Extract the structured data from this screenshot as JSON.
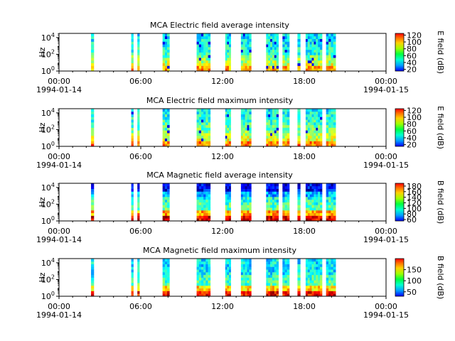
{
  "chart_data": [
    {
      "type": "heatmap",
      "title": "MCA  Electric field average intensity",
      "ylabel": "Hz",
      "y_scale": "log",
      "y_ticks": [
        {
          "base": "10",
          "exp": "0"
        },
        {
          "base": "10",
          "exp": "2"
        },
        {
          "base": "10",
          "exp": "4"
        }
      ],
      "x_ticks": [
        "00:00",
        "06:00",
        "12:00",
        "18:00",
        "00:00"
      ],
      "x_start_date": "1994-01-14",
      "x_end_date": "1994-01-15",
      "colorbar": {
        "label": "E field (dB)",
        "ticks": [
          "20",
          "40",
          "60",
          "80",
          "100",
          "120"
        ],
        "range": [
          15,
          125
        ]
      },
      "data_blocks_hours": [
        [
          2.35,
          2.55
        ],
        [
          5.3,
          5.45
        ],
        [
          5.75,
          5.9
        ],
        [
          7.6,
          8.1
        ],
        [
          10.1,
          11.1
        ],
        [
          12.2,
          12.6
        ],
        [
          13.35,
          14.1
        ],
        [
          15.2,
          16.1
        ],
        [
          16.4,
          16.9
        ],
        [
          17.5,
          17.7
        ],
        [
          18.1,
          19.3
        ],
        [
          19.6,
          20.3
        ]
      ],
      "colors": {
        "low": "#0000ff",
        "mid": "#00ff7f",
        "high": "#ff0000"
      }
    },
    {
      "type": "heatmap",
      "title": "MCA  Electric field maximum intensity",
      "ylabel": "Hz",
      "y_scale": "log",
      "y_ticks": [
        {
          "base": "10",
          "exp": "0"
        },
        {
          "base": "10",
          "exp": "2"
        },
        {
          "base": "10",
          "exp": "4"
        }
      ],
      "x_ticks": [
        "00:00",
        "06:00",
        "12:00",
        "18:00",
        "00:00"
      ],
      "x_start_date": "1994-01-14",
      "x_end_date": "1994-01-15",
      "colorbar": {
        "label": "E field (dB)",
        "ticks": [
          "20",
          "40",
          "60",
          "80",
          "100",
          "120"
        ],
        "range": [
          15,
          125
        ]
      },
      "data_blocks_hours": [
        [
          2.35,
          2.55
        ],
        [
          5.3,
          5.45
        ],
        [
          5.75,
          5.9
        ],
        [
          7.6,
          8.1
        ],
        [
          10.1,
          11.1
        ],
        [
          12.2,
          12.6
        ],
        [
          13.35,
          14.1
        ],
        [
          15.2,
          16.1
        ],
        [
          16.4,
          16.9
        ],
        [
          17.5,
          17.7
        ],
        [
          18.1,
          19.3
        ],
        [
          19.6,
          20.3
        ]
      ],
      "colors": {
        "low": "#0000ff",
        "mid": "#00ff7f",
        "high": "#ff0000"
      }
    },
    {
      "type": "heatmap",
      "title": "MCA  Magnetic field average intensity",
      "ylabel": "Hz",
      "y_scale": "log",
      "y_ticks": [
        {
          "base": "10",
          "exp": "0"
        },
        {
          "base": "10",
          "exp": "2"
        },
        {
          "base": "10",
          "exp": "4"
        }
      ],
      "x_ticks": [
        "00:00",
        "06:00",
        "12:00",
        "18:00",
        "00:00"
      ],
      "x_start_date": "1994-01-14",
      "x_end_date": "1994-01-15",
      "colorbar": {
        "label": "B field (dB)",
        "ticks": [
          "60",
          "80",
          "100",
          "120",
          "140",
          "160",
          "180"
        ],
        "range": [
          55,
          190
        ]
      },
      "data_blocks_hours": [
        [
          2.35,
          2.55
        ],
        [
          5.3,
          5.45
        ],
        [
          5.75,
          5.9
        ],
        [
          7.6,
          8.1
        ],
        [
          10.1,
          11.1
        ],
        [
          12.2,
          12.6
        ],
        [
          13.35,
          14.1
        ],
        [
          15.2,
          16.1
        ],
        [
          16.4,
          16.9
        ],
        [
          17.5,
          17.7
        ],
        [
          18.1,
          19.3
        ],
        [
          19.6,
          20.3
        ]
      ],
      "colors": {
        "low": "#0000ff",
        "mid": "#00ff7f",
        "high": "#ff0000"
      }
    },
    {
      "type": "heatmap",
      "title": "MCA  Magnetic field maximum intensity",
      "ylabel": "Hz",
      "y_scale": "log",
      "y_ticks": [
        {
          "base": "10",
          "exp": "0"
        },
        {
          "base": "10",
          "exp": "2"
        },
        {
          "base": "10",
          "exp": "4"
        }
      ],
      "x_ticks": [
        "00:00",
        "06:00",
        "12:00",
        "18:00",
        "00:00"
      ],
      "x_start_date": "1994-01-14",
      "x_end_date": "1994-01-15",
      "colorbar": {
        "label": "B field (dB)",
        "ticks": [
          "50",
          "100",
          "150"
        ],
        "range": [
          30,
          200
        ]
      },
      "data_blocks_hours": [
        [
          2.35,
          2.55
        ],
        [
          5.3,
          5.45
        ],
        [
          5.75,
          5.9
        ],
        [
          7.6,
          8.1
        ],
        [
          10.1,
          11.1
        ],
        [
          12.2,
          12.6
        ],
        [
          13.35,
          14.1
        ],
        [
          15.2,
          16.1
        ],
        [
          16.4,
          16.9
        ],
        [
          17.5,
          17.7
        ],
        [
          18.1,
          19.3
        ],
        [
          19.6,
          20.3
        ]
      ],
      "colors": {
        "low": "#0000ff",
        "mid": "#00ff7f",
        "high": "#ff0000"
      }
    }
  ]
}
